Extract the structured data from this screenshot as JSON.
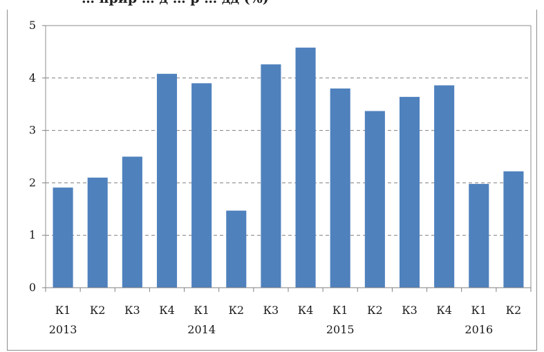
{
  "title": "… прир … д … р … дд (%)",
  "chart_data": {
    "type": "bar",
    "title": "",
    "xlabel": "",
    "ylabel": "",
    "ylim": [
      0,
      5
    ],
    "yticks": [
      0,
      1,
      2,
      3,
      4,
      5
    ],
    "grid": true,
    "categories": [
      "К1",
      "К2",
      "К3",
      "К4",
      "К1",
      "К2",
      "К3",
      "К4",
      "К1",
      "К2",
      "К3",
      "К4",
      "К1",
      "К2"
    ],
    "years": [
      {
        "label": "2013",
        "start": 0
      },
      {
        "label": "2014",
        "start": 4
      },
      {
        "label": "2015",
        "start": 8
      },
      {
        "label": "2016",
        "start": 12
      }
    ],
    "values": [
      1.91,
      2.1,
      2.5,
      4.08,
      3.9,
      1.47,
      4.26,
      4.58,
      3.8,
      3.37,
      3.64,
      3.86,
      1.98,
      2.22
    ],
    "bar_color": "#4f81bd"
  }
}
